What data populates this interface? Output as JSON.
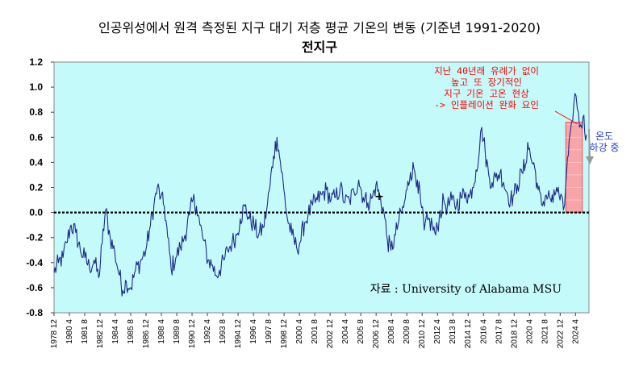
{
  "chart_data": {
    "type": "line",
    "title": "인공위성에서 원격 측정된 지구 대기 저층 평균 기온의 변동 (기준년 1991-2020)",
    "subtitle": "전지구",
    "ylim": [
      -0.8,
      1.2
    ],
    "yticks": [
      "1.2",
      "1.0",
      "0.8",
      "0.6",
      "0.4",
      "0.2",
      "0.0",
      "-0.2",
      "-0.4",
      "-0.6",
      "-0.8"
    ],
    "xlim": [
      1978.92,
      2025.42
    ],
    "xticks": [
      "1978 12",
      "1980 4",
      "1981 8",
      "1982 12",
      "1984 4",
      "1985 8",
      "1986 12",
      "1988 4",
      "1989 8",
      "1990 12",
      "1992 4",
      "1993 8",
      "1994 12",
      "1996 4",
      "1997 8",
      "1998 12",
      "2000 4",
      "2001 8",
      "2002 12",
      "2004 4",
      "2005 8",
      "2006 12",
      "2008 4",
      "2009 8",
      "2010 12",
      "2012 4",
      "2013 8",
      "2014 12",
      "2016 4",
      "2017 8",
      "2018 12",
      "2020 4",
      "2021 8",
      "2022 12",
      "2024 4"
    ],
    "baseline": 0.0,
    "highlight_band": {
      "x0": 2023.4,
      "x1": 2024.85,
      "y0": 0.0,
      "y1": 0.72
    },
    "key_points": [
      [
        1978.92,
        -0.48
      ],
      [
        1979.3,
        -0.4
      ],
      [
        1979.7,
        -0.36
      ],
      [
        1980.0,
        -0.24
      ],
      [
        1980.4,
        -0.1
      ],
      [
        1980.8,
        -0.16
      ],
      [
        1981.2,
        -0.3
      ],
      [
        1981.6,
        -0.36
      ],
      [
        1982.0,
        -0.44
      ],
      [
        1982.4,
        -0.38
      ],
      [
        1982.8,
        -0.52
      ],
      [
        1983.1,
        -0.25
      ],
      [
        1983.4,
        0.02
      ],
      [
        1983.8,
        -0.2
      ],
      [
        1984.2,
        -0.32
      ],
      [
        1984.6,
        -0.5
      ],
      [
        1984.9,
        -0.62
      ],
      [
        1985.2,
        -0.55
      ],
      [
        1985.6,
        -0.6
      ],
      [
        1986.0,
        -0.46
      ],
      [
        1986.4,
        -0.4
      ],
      [
        1986.9,
        -0.3
      ],
      [
        1987.3,
        -0.1
      ],
      [
        1987.6,
        0.06
      ],
      [
        1987.9,
        0.2
      ],
      [
        1988.2,
        0.12
      ],
      [
        1988.5,
        0.05
      ],
      [
        1988.8,
        -0.2
      ],
      [
        1989.1,
        -0.45
      ],
      [
        1989.5,
        -0.36
      ],
      [
        1989.9,
        -0.28
      ],
      [
        1990.3,
        -0.18
      ],
      [
        1990.7,
        -0.02
      ],
      [
        1991.0,
        0.1
      ],
      [
        1991.3,
        0.05
      ],
      [
        1991.6,
        -0.1
      ],
      [
        1991.9,
        -0.22
      ],
      [
        1992.3,
        -0.38
      ],
      [
        1992.7,
        -0.42
      ],
      [
        1993.0,
        -0.5
      ],
      [
        1993.3,
        -0.46
      ],
      [
        1993.7,
        -0.38
      ],
      [
        1994.0,
        -0.3
      ],
      [
        1994.4,
        -0.24
      ],
      [
        1994.8,
        -0.18
      ],
      [
        1995.1,
        -0.05
      ],
      [
        1995.5,
        0.05
      ],
      [
        1995.9,
        -0.05
      ],
      [
        1996.3,
        -0.1
      ],
      [
        1996.7,
        -0.18
      ],
      [
        1997.1,
        -0.12
      ],
      [
        1997.4,
        0.02
      ],
      [
        1997.7,
        0.22
      ],
      [
        1998.0,
        0.45
      ],
      [
        1998.3,
        0.6
      ],
      [
        1998.6,
        0.4
      ],
      [
        1998.9,
        0.18
      ],
      [
        1999.2,
        -0.05
      ],
      [
        1999.6,
        -0.18
      ],
      [
        2000.0,
        -0.28
      ],
      [
        2000.3,
        -0.24
      ],
      [
        2000.7,
        -0.08
      ],
      [
        2001.0,
        -0.02
      ],
      [
        2001.4,
        0.06
      ],
      [
        2001.8,
        0.1
      ],
      [
        2002.2,
        0.14
      ],
      [
        2002.6,
        0.18
      ],
      [
        2003.0,
        0.1
      ],
      [
        2003.4,
        0.12
      ],
      [
        2003.8,
        0.2
      ],
      [
        2004.2,
        0.08
      ],
      [
        2004.6,
        0.1
      ],
      [
        2005.0,
        0.16
      ],
      [
        2005.4,
        0.26
      ],
      [
        2005.8,
        0.12
      ],
      [
        2006.2,
        0.08
      ],
      [
        2006.6,
        0.12
      ],
      [
        2006.9,
        0.22
      ],
      [
        2007.2,
        0.14
      ],
      [
        2007.6,
        0.0
      ],
      [
        2007.9,
        -0.22
      ],
      [
        2008.2,
        -0.3
      ],
      [
        2008.6,
        -0.18
      ],
      [
        2008.9,
        -0.06
      ],
      [
        2009.3,
        0.04
      ],
      [
        2009.6,
        0.18
      ],
      [
        2009.9,
        0.32
      ],
      [
        2010.2,
        0.35
      ],
      [
        2010.5,
        0.26
      ],
      [
        2010.8,
        0.08
      ],
      [
        2011.1,
        -0.14
      ],
      [
        2011.4,
        -0.06
      ],
      [
        2011.8,
        -0.1
      ],
      [
        2012.1,
        -0.18
      ],
      [
        2012.4,
        -0.04
      ],
      [
        2012.8,
        0.1
      ],
      [
        2013.1,
        0.04
      ],
      [
        2013.5,
        0.1
      ],
      [
        2013.9,
        0.06
      ],
      [
        2014.3,
        0.12
      ],
      [
        2014.7,
        0.16
      ],
      [
        2015.0,
        0.12
      ],
      [
        2015.3,
        0.2
      ],
      [
        2015.6,
        0.34
      ],
      [
        2015.9,
        0.5
      ],
      [
        2016.1,
        0.68
      ],
      [
        2016.4,
        0.48
      ],
      [
        2016.7,
        0.3
      ],
      [
        2017.0,
        0.24
      ],
      [
        2017.3,
        0.28
      ],
      [
        2017.7,
        0.32
      ],
      [
        2018.0,
        0.24
      ],
      [
        2018.3,
        0.16
      ],
      [
        2018.6,
        0.1
      ],
      [
        2018.9,
        0.14
      ],
      [
        2019.2,
        0.22
      ],
      [
        2019.6,
        0.32
      ],
      [
        2019.9,
        0.38
      ],
      [
        2020.1,
        0.56
      ],
      [
        2020.4,
        0.42
      ],
      [
        2020.7,
        0.36
      ],
      [
        2021.0,
        0.18
      ],
      [
        2021.3,
        0.06
      ],
      [
        2021.7,
        0.14
      ],
      [
        2022.0,
        0.12
      ],
      [
        2022.3,
        0.08
      ],
      [
        2022.6,
        0.2
      ],
      [
        2022.9,
        0.1
      ],
      [
        2023.2,
        0.02
      ],
      [
        2023.4,
        0.22
      ],
      [
        2023.7,
        0.58
      ],
      [
        2023.9,
        0.72
      ],
      [
        2024.1,
        0.86
      ],
      [
        2024.3,
        0.93
      ],
      [
        2024.5,
        0.8
      ],
      [
        2024.7,
        0.7
      ],
      [
        2024.9,
        0.76
      ],
      [
        2025.2,
        0.62
      ]
    ]
  },
  "annotations": {
    "note_lines": [
      "지난 40년래 유례가 없이",
      "높고 또 장기적인",
      "지구 기온 고온 현상",
      "-> 인플레이션 완화 요인"
    ],
    "arrow_label_lines": [
      "온도",
      "하강 중"
    ],
    "source": "자료 :  University of Alabama MSU",
    "marker": "+"
  },
  "colors": {
    "plot_bg": "#c5fafa",
    "line": "#1c2a8c",
    "baseline": "#000000",
    "band": "#f7a5a8",
    "band_edge": "#e04040",
    "note": "#ff0000",
    "arrow_label": "#1f3fd6"
  }
}
